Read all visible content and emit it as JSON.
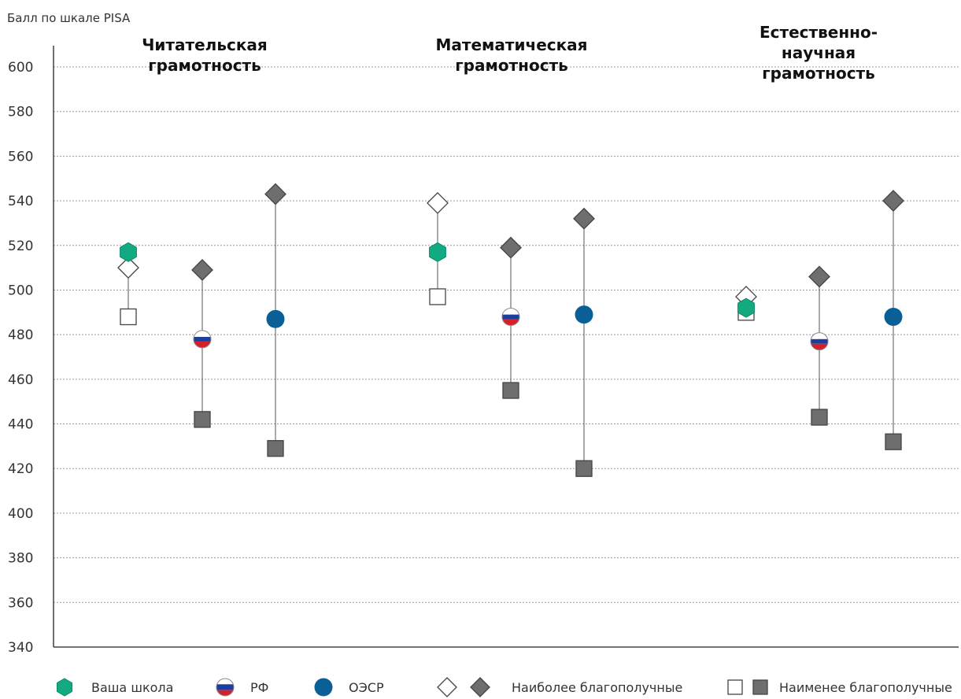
{
  "chart_data": {
    "type": "scatter",
    "ylabel": "Балл по шкале PISA",
    "ylim": [
      340,
      600
    ],
    "yticks": [
      600,
      580,
      560,
      540,
      520,
      500,
      480,
      460,
      440,
      420,
      400,
      380,
      360,
      340
    ],
    "grid": true,
    "legend_position": "bottom",
    "colors": {
      "school": "#13a981",
      "oecd": "#0a5f96",
      "gray": "#6e6e6e",
      "flag_white": "#ffffff",
      "flag_blue": "#1c3f9e",
      "flag_red": "#d5202a",
      "line": "#555555",
      "grid": "#9a9a9a"
    },
    "groups": [
      {
        "title": "Читательская\nграмотность",
        "school": {
          "value": 517,
          "most": 510,
          "least": 488
        },
        "russia": {
          "value": 478,
          "most": 509,
          "least": 442
        },
        "oecd": {
          "value": 487,
          "most": 543,
          "least": 429
        }
      },
      {
        "title": "Математическая\nграмотность",
        "school": {
          "value": 517,
          "most": 539,
          "least": 497
        },
        "russia": {
          "value": 488,
          "most": 519,
          "least": 455
        },
        "oecd": {
          "value": 489,
          "most": 532,
          "least": 420
        }
      },
      {
        "title": "Естественно-\nнаучная\nграмотность",
        "school": {
          "value": 492,
          "most": 497,
          "least": 490
        },
        "russia": {
          "value": 477,
          "most": 506,
          "least": 443
        },
        "oecd": {
          "value": 488,
          "most": 540,
          "least": 432
        }
      }
    ],
    "legend": [
      {
        "label": "Ваша школа",
        "icon": "green-hexagon-icon"
      },
      {
        "label": "РФ",
        "icon": "russian-flag-circle-icon"
      },
      {
        "label": "ОЭСР",
        "icon": "blue-circle-icon"
      },
      {
        "label": "Наиболее благополучные",
        "icon": "diamond-pair-icon"
      },
      {
        "label": "Наименее благополучные",
        "icon": "square-pair-icon"
      }
    ]
  }
}
